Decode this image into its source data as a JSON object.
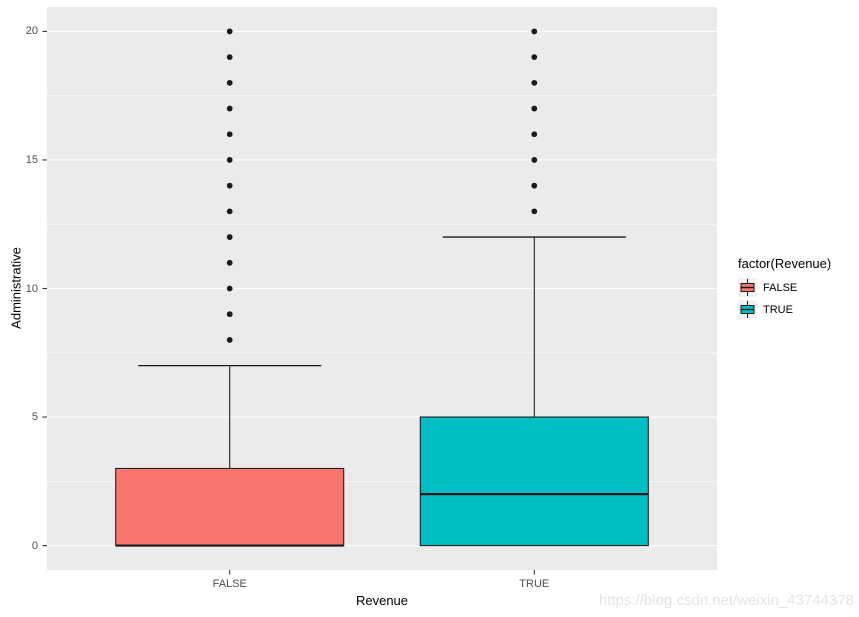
{
  "chart_data": {
    "type": "boxplot",
    "title": "",
    "xlabel": "Revenue",
    "ylabel": "Administrative",
    "categories": [
      "FALSE",
      "TRUE"
    ],
    "y_ticks": [
      0,
      5,
      10,
      15,
      20
    ],
    "y_minor_ticks": [
      2.5,
      7.5,
      12.5,
      17.5
    ],
    "ylim": [
      -0.95,
      20.95
    ],
    "grid": true,
    "legend_position": "right",
    "panel_bg": "#EBEBEB",
    "grid_color": "#FFFFFF",
    "box_outline_color": "#1A1A1A",
    "tick_mark_color": "#333333",
    "tick_label_color": "#4D4D4D",
    "series": [
      {
        "category": "FALSE",
        "fill": "#F8766D",
        "q1": 0,
        "median": 0,
        "q3": 3,
        "whisker_low": 0,
        "whisker_high": 7,
        "outliers": [
          8,
          9,
          10,
          11,
          12,
          13,
          14,
          15,
          16,
          17,
          18,
          19,
          20
        ]
      },
      {
        "category": "TRUE",
        "fill": "#00BFC4",
        "q1": 0,
        "median": 2,
        "q3": 5,
        "whisker_low": 0,
        "whisker_high": 12,
        "outliers": [
          13,
          14,
          15,
          16,
          17,
          18,
          19,
          20
        ]
      }
    ],
    "legend": {
      "title": "factor(Revenue)",
      "entries": [
        {
          "label": "FALSE",
          "color": "#F8766D"
        },
        {
          "label": "TRUE",
          "color": "#00BFC4"
        }
      ]
    },
    "watermark": "https://blog.csdn.net/weixin_43744378"
  }
}
